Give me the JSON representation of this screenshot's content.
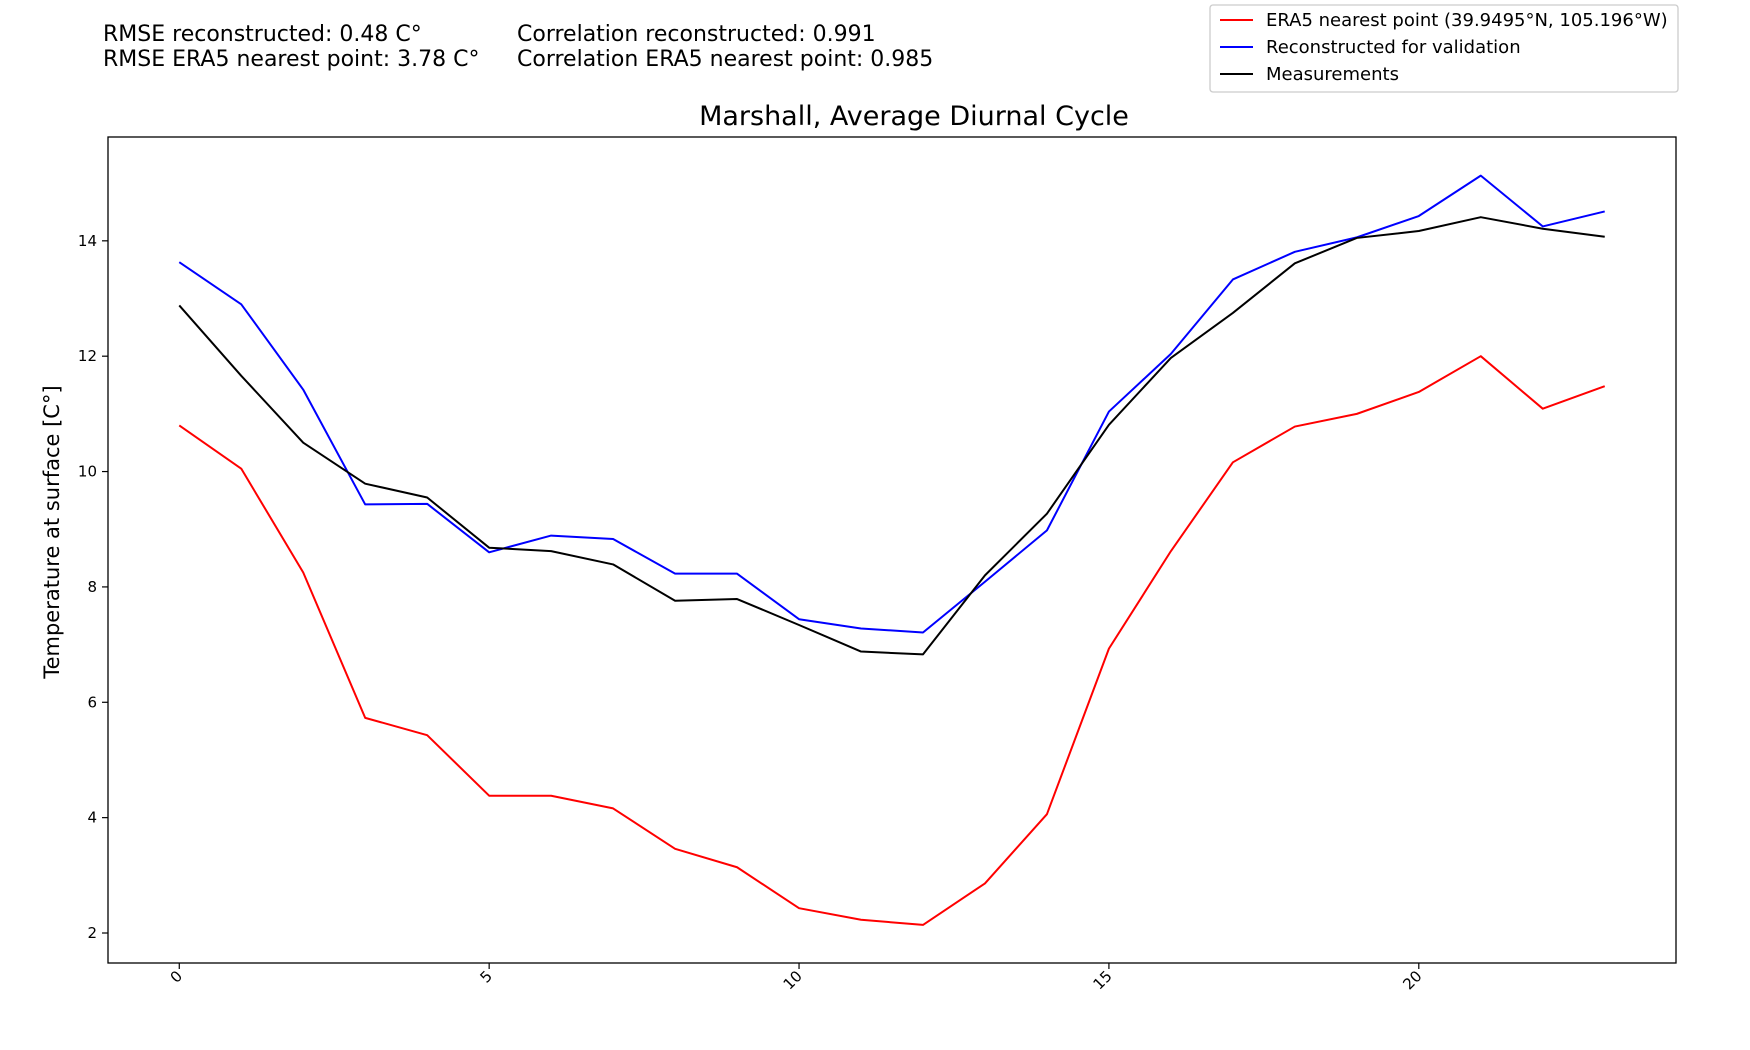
{
  "stats": {
    "rmse_reconstructed": "RMSE reconstructed: 0.48 C°",
    "rmse_era5": "RMSE ERA5 nearest point: 3.78 C°",
    "corr_reconstructed": "Correlation reconstructed: 0.991",
    "corr_era5": "Correlation ERA5 nearest point: 0.985"
  },
  "chart_data": {
    "type": "line",
    "title": "Marshall, Average Diurnal Cycle",
    "xlabel": "",
    "ylabel": "Temperature at surface [C°]",
    "xlim": [
      -1.15,
      24.15
    ],
    "ylim": [
      1.48,
      15.8
    ],
    "xticks": [
      0,
      5,
      10,
      15,
      20
    ],
    "yticks": [
      2,
      4,
      6,
      8,
      10,
      12,
      14
    ],
    "grid": false,
    "legend_position": "top-right",
    "x": [
      0,
      1,
      2,
      3,
      4,
      5,
      6,
      7,
      8,
      9,
      10,
      11,
      12,
      13,
      14,
      15,
      16,
      17,
      18,
      19,
      20,
      21,
      22,
      23
    ],
    "series": [
      {
        "name": "ERA5 nearest point (39.9495°N, 105.196°W)",
        "color": "#ff0000",
        "values": [
          10.8,
          10.05,
          8.25,
          5.73,
          5.43,
          4.38,
          4.38,
          4.16,
          3.46,
          3.14,
          2.43,
          2.23,
          2.14,
          2.86,
          4.06,
          6.93,
          8.62,
          10.16,
          10.78,
          11.0,
          11.38,
          12.0,
          11.09,
          11.48
        ]
      },
      {
        "name": "Reconstructed for validation",
        "color": "#0000ff",
        "values": [
          13.63,
          12.9,
          11.42,
          9.43,
          9.44,
          8.6,
          8.89,
          8.83,
          8.23,
          8.23,
          7.44,
          7.28,
          7.21,
          8.09,
          8.98,
          11.04,
          12.04,
          13.33,
          13.81,
          14.06,
          14.43,
          15.13,
          14.25,
          14.51
        ]
      },
      {
        "name": "Measurements",
        "color": "#000000",
        "values": [
          12.88,
          11.66,
          10.5,
          9.79,
          9.55,
          8.68,
          8.62,
          8.39,
          7.76,
          7.79,
          7.34,
          6.88,
          6.83,
          8.2,
          9.27,
          10.81,
          11.97,
          12.75,
          13.61,
          14.05,
          14.17,
          14.41,
          14.21,
          14.07
        ]
      }
    ]
  }
}
